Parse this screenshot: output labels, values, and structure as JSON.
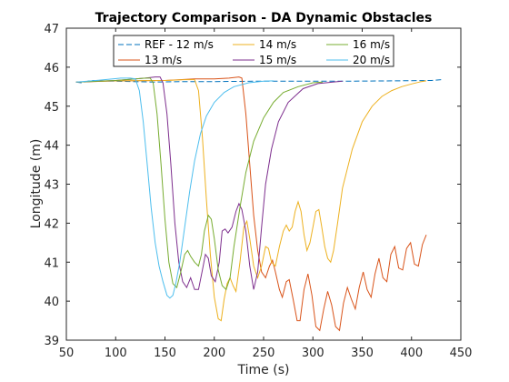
{
  "chart_data": {
    "type": "line",
    "title": "Trajectory Comparison - DA Dynamic Obstacles",
    "xlabel": "Time (s)",
    "ylabel": "Longitude (m)",
    "xlim": [
      50,
      450
    ],
    "ylim": [
      39,
      47
    ],
    "xticks": [
      50,
      100,
      150,
      200,
      250,
      300,
      350,
      400,
      450
    ],
    "yticks": [
      39,
      40,
      41,
      42,
      43,
      44,
      45,
      46,
      47
    ],
    "grid": false,
    "legend_position": "top",
    "series": [
      {
        "name": "REF - 12 m/s",
        "color": "#0072BD",
        "dash": true,
        "points": [
          [
            60,
            45.62
          ],
          [
            65,
            45.6
          ],
          [
            75,
            45.66
          ],
          [
            100,
            45.64
          ],
          [
            140,
            45.62
          ],
          [
            170,
            45.63
          ],
          [
            200,
            45.63
          ],
          [
            240,
            45.64
          ],
          [
            280,
            45.64
          ],
          [
            330,
            45.64
          ],
          [
            380,
            45.65
          ],
          [
            420,
            45.66
          ],
          [
            430,
            45.68
          ]
        ]
      },
      {
        "name": "13 m/s",
        "color": "#D95319",
        "points": [
          [
            60,
            45.62
          ],
          [
            100,
            45.65
          ],
          [
            150,
            45.66
          ],
          [
            180,
            45.7
          ],
          [
            200,
            45.7
          ],
          [
            215,
            45.72
          ],
          [
            225,
            45.75
          ],
          [
            228,
            45.72
          ],
          [
            232,
            44.8
          ],
          [
            236,
            43.5
          ],
          [
            240,
            42.2
          ],
          [
            244,
            41.3
          ],
          [
            248,
            40.75
          ],
          [
            252,
            40.6
          ],
          [
            256,
            40.9
          ],
          [
            259,
            41.05
          ],
          [
            262,
            40.75
          ],
          [
            266,
            40.3
          ],
          [
            269,
            40.1
          ],
          [
            273,
            40.5
          ],
          [
            276,
            40.55
          ],
          [
            280,
            40.05
          ],
          [
            284,
            39.5
          ],
          [
            287,
            39.5
          ],
          [
            291,
            40.3
          ],
          [
            295,
            40.7
          ],
          [
            299,
            40.15
          ],
          [
            303,
            39.35
          ],
          [
            307,
            39.25
          ],
          [
            311,
            39.8
          ],
          [
            315,
            40.25
          ],
          [
            319,
            39.9
          ],
          [
            323,
            39.35
          ],
          [
            327,
            39.25
          ],
          [
            331,
            39.95
          ],
          [
            335,
            40.35
          ],
          [
            339,
            40.05
          ],
          [
            343,
            39.8
          ],
          [
            347,
            40.35
          ],
          [
            351,
            40.75
          ],
          [
            355,
            40.3
          ],
          [
            359,
            40.1
          ],
          [
            363,
            40.7
          ],
          [
            367,
            41.1
          ],
          [
            371,
            40.6
          ],
          [
            375,
            40.5
          ],
          [
            379,
            41.2
          ],
          [
            383,
            41.4
          ],
          [
            387,
            40.85
          ],
          [
            391,
            40.8
          ],
          [
            395,
            41.35
          ],
          [
            399,
            41.5
          ],
          [
            403,
            40.95
          ],
          [
            407,
            40.9
          ],
          [
            411,
            41.45
          ],
          [
            415,
            41.7
          ]
        ]
      },
      {
        "name": "14 m/s",
        "color": "#EDB120",
        "points": [
          [
            60,
            45.62
          ],
          [
            100,
            45.65
          ],
          [
            150,
            45.66
          ],
          [
            170,
            45.68
          ],
          [
            180,
            45.68
          ],
          [
            184,
            45.4
          ],
          [
            188,
            44.2
          ],
          [
            192,
            42.6
          ],
          [
            196,
            41.2
          ],
          [
            200,
            40.1
          ],
          [
            204,
            39.55
          ],
          [
            207,
            39.5
          ],
          [
            210,
            40.05
          ],
          [
            213,
            40.45
          ],
          [
            216,
            40.6
          ],
          [
            219,
            40.4
          ],
          [
            222,
            40.25
          ],
          [
            226,
            41.0
          ],
          [
            230,
            41.9
          ],
          [
            233,
            42.05
          ],
          [
            236,
            41.6
          ],
          [
            240,
            40.9
          ],
          [
            244,
            40.6
          ],
          [
            248,
            40.9
          ],
          [
            252,
            41.4
          ],
          [
            255,
            41.35
          ],
          [
            258,
            41.0
          ],
          [
            262,
            40.9
          ],
          [
            266,
            41.4
          ],
          [
            270,
            41.8
          ],
          [
            273,
            41.95
          ],
          [
            276,
            41.8
          ],
          [
            279,
            41.9
          ],
          [
            282,
            42.3
          ],
          [
            285,
            42.55
          ],
          [
            288,
            42.3
          ],
          [
            291,
            41.7
          ],
          [
            294,
            41.3
          ],
          [
            297,
            41.5
          ],
          [
            300,
            41.9
          ],
          [
            303,
            42.3
          ],
          [
            306,
            42.35
          ],
          [
            309,
            41.9
          ],
          [
            312,
            41.4
          ],
          [
            315,
            41.1
          ],
          [
            318,
            41.0
          ],
          [
            321,
            41.3
          ],
          [
            325,
            42.0
          ],
          [
            330,
            42.9
          ],
          [
            340,
            43.9
          ],
          [
            350,
            44.6
          ],
          [
            360,
            45.0
          ],
          [
            370,
            45.25
          ],
          [
            380,
            45.4
          ],
          [
            390,
            45.5
          ],
          [
            400,
            45.57
          ],
          [
            410,
            45.63
          ],
          [
            415,
            45.65
          ]
        ]
      },
      {
        "name": "15 m/s",
        "color": "#7E2F8E",
        "points": [
          [
            60,
            45.62
          ],
          [
            100,
            45.66
          ],
          [
            130,
            45.72
          ],
          [
            140,
            45.75
          ],
          [
            145,
            45.75
          ],
          [
            148,
            45.6
          ],
          [
            152,
            44.8
          ],
          [
            156,
            43.5
          ],
          [
            160,
            42.0
          ],
          [
            164,
            41.0
          ],
          [
            168,
            40.5
          ],
          [
            172,
            40.35
          ],
          [
            176,
            40.6
          ],
          [
            180,
            40.3
          ],
          [
            184,
            40.3
          ],
          [
            188,
            40.8
          ],
          [
            191,
            41.2
          ],
          [
            194,
            41.1
          ],
          [
            197,
            40.65
          ],
          [
            201,
            40.5
          ],
          [
            205,
            41.0
          ],
          [
            208,
            41.8
          ],
          [
            211,
            41.85
          ],
          [
            214,
            41.75
          ],
          [
            218,
            41.9
          ],
          [
            222,
            42.3
          ],
          [
            225,
            42.5
          ],
          [
            228,
            42.35
          ],
          [
            232,
            41.8
          ],
          [
            236,
            40.9
          ],
          [
            240,
            40.3
          ],
          [
            244,
            40.75
          ],
          [
            248,
            41.9
          ],
          [
            252,
            43.0
          ],
          [
            258,
            43.9
          ],
          [
            265,
            44.6
          ],
          [
            275,
            45.1
          ],
          [
            290,
            45.45
          ],
          [
            305,
            45.58
          ],
          [
            320,
            45.62
          ],
          [
            330,
            45.64
          ]
        ]
      },
      {
        "name": "16 m/s",
        "color": "#77AC30",
        "points": [
          [
            60,
            45.62
          ],
          [
            100,
            45.66
          ],
          [
            130,
            45.72
          ],
          [
            135,
            45.72
          ],
          [
            138,
            45.6
          ],
          [
            142,
            44.8
          ],
          [
            146,
            43.5
          ],
          [
            150,
            42.1
          ],
          [
            154,
            41.0
          ],
          [
            158,
            40.45
          ],
          [
            162,
            40.35
          ],
          [
            166,
            40.75
          ],
          [
            170,
            41.2
          ],
          [
            173,
            41.3
          ],
          [
            176,
            41.15
          ],
          [
            180,
            41.0
          ],
          [
            184,
            40.9
          ],
          [
            187,
            41.2
          ],
          [
            190,
            41.8
          ],
          [
            194,
            42.2
          ],
          [
            197,
            42.1
          ],
          [
            200,
            41.6
          ],
          [
            204,
            40.8
          ],
          [
            208,
            40.4
          ],
          [
            212,
            40.3
          ],
          [
            216,
            40.6
          ],
          [
            220,
            41.4
          ],
          [
            226,
            42.4
          ],
          [
            232,
            43.3
          ],
          [
            240,
            44.1
          ],
          [
            250,
            44.7
          ],
          [
            260,
            45.1
          ],
          [
            270,
            45.35
          ],
          [
            285,
            45.5
          ],
          [
            300,
            45.6
          ],
          [
            310,
            45.62
          ]
        ]
      },
      {
        "name": "20 m/s",
        "color": "#4DBEEE",
        "points": [
          [
            60,
            45.62
          ],
          [
            80,
            45.66
          ],
          [
            105,
            45.72
          ],
          [
            115,
            45.72
          ],
          [
            120,
            45.7
          ],
          [
            124,
            45.4
          ],
          [
            128,
            44.6
          ],
          [
            132,
            43.5
          ],
          [
            136,
            42.4
          ],
          [
            140,
            41.5
          ],
          [
            144,
            40.9
          ],
          [
            148,
            40.5
          ],
          [
            152,
            40.15
          ],
          [
            155,
            40.08
          ],
          [
            158,
            40.15
          ],
          [
            161,
            40.45
          ],
          [
            165,
            41.0
          ],
          [
            170,
            41.9
          ],
          [
            175,
            42.8
          ],
          [
            180,
            43.6
          ],
          [
            186,
            44.3
          ],
          [
            192,
            44.75
          ],
          [
            200,
            45.1
          ],
          [
            210,
            45.35
          ],
          [
            220,
            45.5
          ],
          [
            235,
            45.6
          ],
          [
            250,
            45.64
          ],
          [
            260,
            45.65
          ]
        ]
      }
    ]
  }
}
